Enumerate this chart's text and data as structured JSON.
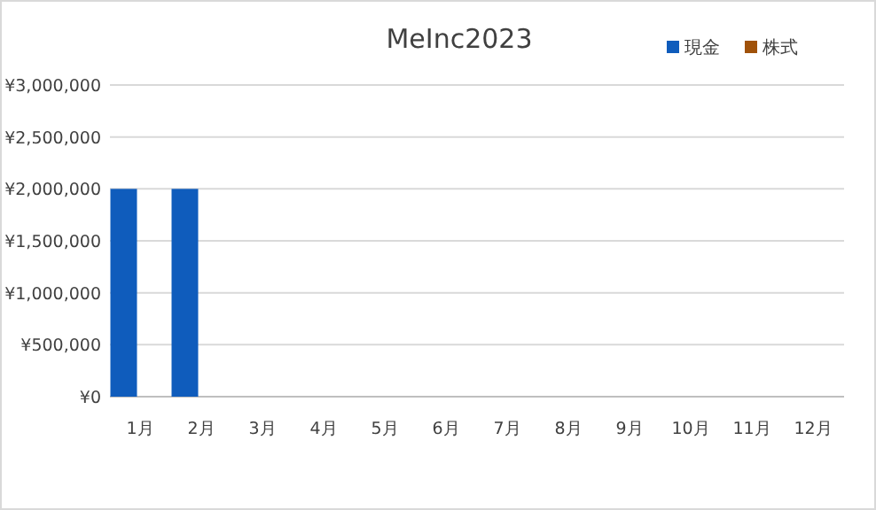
{
  "chart_data": {
    "type": "bar",
    "title": "MeInc2023",
    "categories": [
      "1月",
      "2月",
      "3月",
      "4月",
      "5月",
      "6月",
      "7月",
      "8月",
      "9月",
      "10月",
      "11月",
      "12月"
    ],
    "series": [
      {
        "name": "現金",
        "color": "#0f5cbc",
        "values": [
          2000000,
          2000000,
          0,
          0,
          0,
          0,
          0,
          0,
          0,
          0,
          0,
          0
        ]
      },
      {
        "name": "株式",
        "color": "#a0520a",
        "values": [
          0,
          0,
          0,
          0,
          0,
          0,
          0,
          0,
          0,
          0,
          0,
          0
        ]
      }
    ],
    "ylim": [
      0,
      3000000
    ],
    "yticks": [
      {
        "value": 0,
        "label": "¥0"
      },
      {
        "value": 500000,
        "label": "¥500,000"
      },
      {
        "value": 1000000,
        "label": "¥1,000,000"
      },
      {
        "value": 1500000,
        "label": "¥1,500,000"
      },
      {
        "value": 2000000,
        "label": "¥2,000,000"
      },
      {
        "value": 2500000,
        "label": "¥2,500,000"
      },
      {
        "value": 3000000,
        "label": "¥3,000,000"
      }
    ],
    "grid": "y",
    "legend": "top right"
  }
}
